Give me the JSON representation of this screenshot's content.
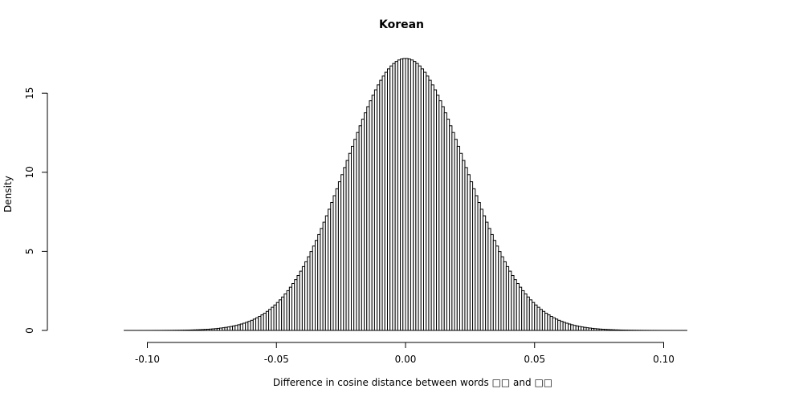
{
  "chart_data": {
    "type": "bar",
    "subtype": "histogram",
    "title": "Korean",
    "xlabel": "Difference in cosine distance between words □□ and □□",
    "ylabel": "Density",
    "xlim": [
      -0.13,
      0.135
    ],
    "ylim": [
      0,
      17.2
    ],
    "x_ticks": [
      -0.1,
      -0.05,
      0.0,
      0.05,
      0.1
    ],
    "x_tick_labels": [
      "-0.10",
      "-0.05",
      "0.00",
      "0.05",
      "0.10"
    ],
    "y_ticks": [
      0,
      5,
      10,
      15
    ],
    "y_tick_labels": [
      "0",
      "5",
      "10",
      "15"
    ],
    "bin_width": 0.001,
    "bin_start": -0.128,
    "bin_end": 0.134,
    "distribution": {
      "mean": 0.0,
      "sd": 0.0232,
      "peak_density": 17.2
    },
    "bar_fill": "#ffffff",
    "bar_stroke": "#000000",
    "grid": false,
    "legend": "none"
  }
}
